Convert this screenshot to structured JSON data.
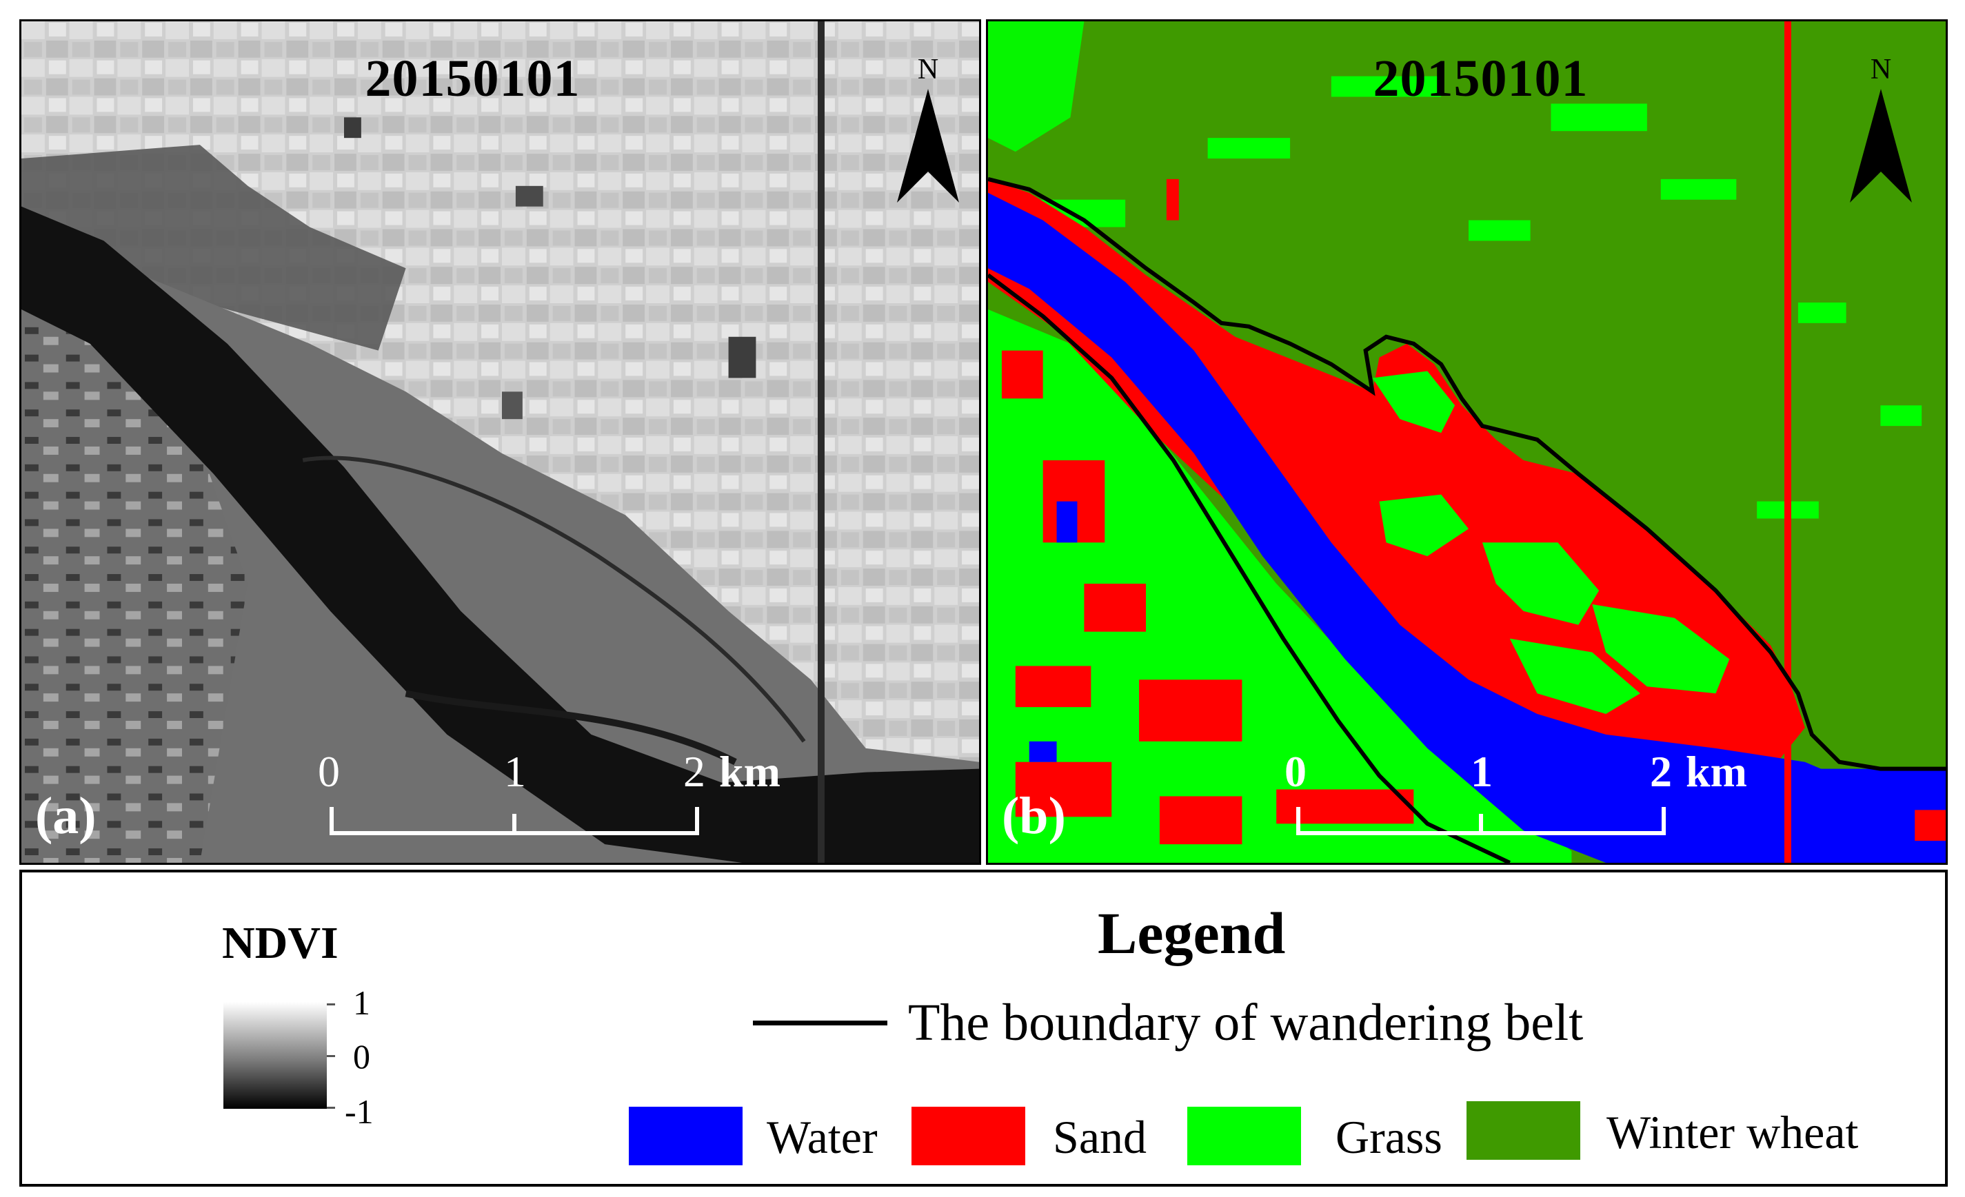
{
  "panels": {
    "a": {
      "date": "20150101",
      "label": "(a)",
      "north": "N"
    },
    "b": {
      "date": "20150101",
      "label": "(b)",
      "north": "N"
    }
  },
  "scalebar": {
    "ticks": [
      "0",
      "1",
      "2"
    ],
    "unit": "km"
  },
  "legend": {
    "title": "Legend",
    "boundary_label": "The boundary of wandering belt",
    "classes": [
      {
        "label": "Water",
        "color": "#0000ff"
      },
      {
        "label": "Sand",
        "color": "#ff0000"
      },
      {
        "label": "Grass",
        "color": "#00ff00"
      },
      {
        "label": "Winter wheat",
        "color": "#3f9a00"
      }
    ],
    "ndvi": {
      "title": "NDVI",
      "max": "1",
      "mid": "0",
      "min": "-1"
    }
  },
  "colors": {
    "water": "#0000ff",
    "sand": "#ff0000",
    "grass": "#00ff00",
    "winter_wheat": "#3f9a00",
    "boundary": "#000000"
  }
}
